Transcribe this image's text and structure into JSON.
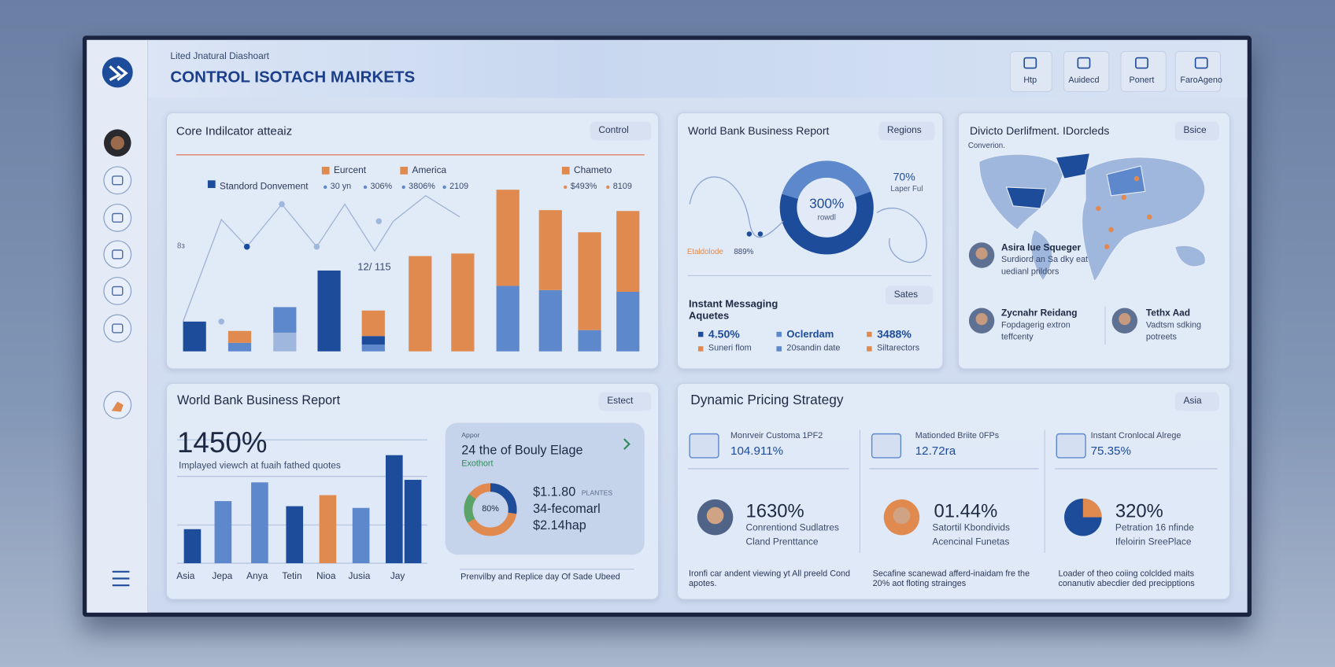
{
  "header": {
    "subtitle": "Lited Jnatural Diashoart",
    "title": "CONTROL ISOTACH MAIRKETS",
    "buttons": [
      "Htp",
      "Auidecd",
      "Ponert",
      "FaroAgeno"
    ]
  },
  "core_indicator": {
    "title": "Core Indilcator atteaiz",
    "action": "Control",
    "legend": [
      "Eurcent",
      "America",
      "Chameto",
      "Standord Donvement"
    ],
    "stats": [
      "30 yn",
      "306%",
      "3806%",
      "2109",
      "$493%",
      "8109"
    ],
    "annotation": "12/ 115",
    "axis_label": "8з"
  },
  "world_bank_regions": {
    "title": "World Bank Business Report",
    "action": "Regions",
    "donut_value": "300%",
    "donut_label": "rowdl",
    "side_value": "70%",
    "side_label": "Laper Ful",
    "foot_label": "Etaldolode",
    "foot_value": "889%",
    "messaging_title": "Instant Messaging Aquetes",
    "messaging_action": "Sates",
    "legend": [
      "4.50%",
      "Oclerdam",
      "3488%",
      "Suneri flom",
      "20sandin date",
      "Siltarectors"
    ]
  },
  "department": {
    "title": "Divicto Derlifment. IDorcleds",
    "action": "Bsice",
    "subtitle": "Converion.",
    "people": [
      {
        "name": "Asira lue Squeger",
        "line1": "Surdiord an Sa dky eat",
        "line2": "uedianl prildors"
      },
      {
        "name": "Zycnahr Reidang",
        "line1": "Fopdagerig extron",
        "line2": "teffcenty"
      },
      {
        "name": "Tethx Aad",
        "line1": "Vadtsm sdking",
        "line2": "potreets"
      }
    ]
  },
  "world_bank_report": {
    "title": "World Bank Business Report",
    "action": "Estect",
    "headline": "1450%",
    "headline_caption": "Implayed viewch at fuaih fathed quotes",
    "categories": [
      "Asia",
      "Jepa",
      "Anya",
      "Tetin",
      "Nioa",
      "Jusia",
      "Jay"
    ],
    "card": {
      "kicker": "Appor",
      "title": "24 the of Bouly Elage",
      "tag": "Exothort",
      "donut_value": "80%",
      "amount1": "$1.1.80",
      "amount1_note": "PLANTES",
      "amount2": "34-fecomarl",
      "amount3": "$2.14hap"
    },
    "footer": "Prenvilby and Replice day Of Sade Ubeed"
  },
  "pricing": {
    "title": "Dynamic Pricing Strategy",
    "action": "Asia",
    "metrics": [
      {
        "label": "Monrveir Customa 1PF2",
        "value": "104.911%"
      },
      {
        "label": "Mationded Briite 0FPs",
        "value": "12.72ra"
      },
      {
        "label": "Instant Cronlocal Alrege",
        "value": "75.35%"
      }
    ],
    "highlights": [
      {
        "value": "1630%",
        "line1": "Conrentiond Sudlatres",
        "line2": "Cland Prenttance"
      },
      {
        "value": "01.44%",
        "line1": "Satortil Kbondivids",
        "line2": "Acencinal Funetas"
      },
      {
        "value": "320%",
        "line1": "Petration 16 nfinde",
        "line2": "Ifeloirin SreePlace"
      }
    ],
    "notes": [
      "Ironfi car andent viewing yt All preeld Cond apotes.",
      "Secafine scanewad afferd-inaidam fre the 20% aot floting strainges",
      "Loader of theo coiing colclded maits conanutiv abecdier ded precipptions"
    ]
  }
}
